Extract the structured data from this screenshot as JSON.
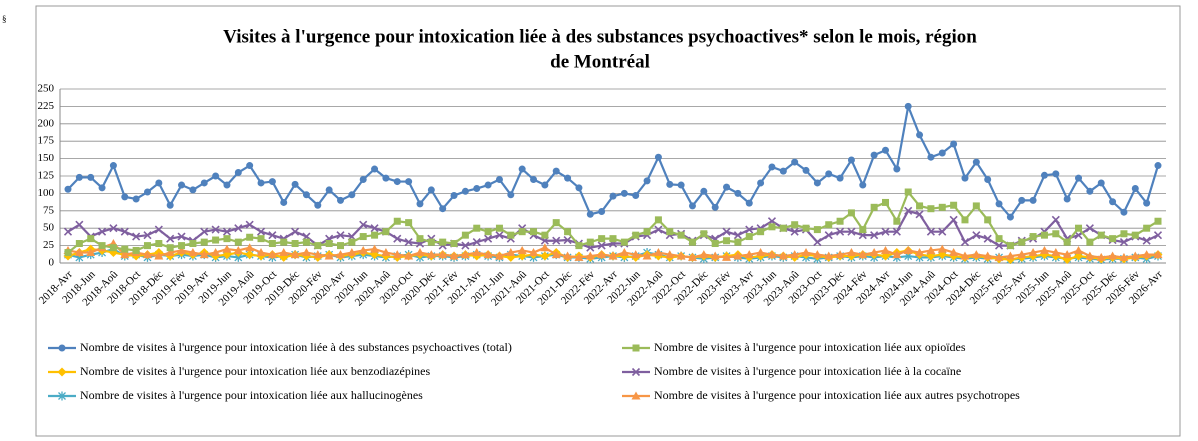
{
  "corner_mark": "§",
  "chart_data": {
    "type": "line",
    "title": [
      "Visites à l'urgence pour intoxication liée à des substances psychoactives* selon le mois, région",
      "de Montréal"
    ],
    "categories": [
      "2018-Avr",
      null,
      "2018-Jun",
      null,
      "2018-Aoû",
      null,
      "2018-Oct",
      null,
      "2018-Déc",
      null,
      "2019-Fév",
      null,
      "2019-Avr",
      null,
      "2019-Jun",
      null,
      "2019-Aoû",
      null,
      "2019-Oct",
      null,
      "2019-Déc",
      null,
      "2020-Fév",
      null,
      "2020-Avr",
      null,
      "2020-Jun",
      null,
      "2020-Aoû",
      null,
      "2020-Oct",
      null,
      "2020-Déc",
      null,
      "2021-Fév",
      null,
      "2021-Avr",
      null,
      "2021-Jun",
      null,
      "2021-Aoû",
      null,
      "2021-Oct",
      null,
      "2021-Déc",
      null,
      "2022-Fév",
      null,
      "2022-Avr",
      null,
      "2022-Jun",
      null,
      "2022-Aoû",
      null,
      "2022-Oct",
      null,
      "2022-Déc",
      null,
      "2023-Fév",
      null,
      "2023-Avr",
      null,
      "2023-Jun",
      null,
      "2023-Aoû",
      null,
      "2023-Oct",
      null,
      "2023-Déc",
      null,
      "2024-Fév",
      null,
      "2024-Avr",
      null,
      "2024-Jun",
      null,
      "2024-Aoû",
      null,
      "2024-Oct",
      null,
      "2024-Déc",
      null,
      "2025-Fév",
      null,
      "2025-Avr",
      null,
      "2025-Jun",
      null,
      "2025-Aoû",
      null,
      "2025-Oct",
      null,
      "2025-Déc",
      null,
      "2026-Fév",
      null,
      "2026-Avr"
    ],
    "series": [
      {
        "name": "Nombre de visites à l'urgence pour intoxication liée à des substances psychoactives (total)",
        "color": "#4f81bd",
        "marker": "circle",
        "values": [
          106,
          123,
          123,
          108,
          140,
          95,
          92,
          102,
          115,
          83,
          112,
          105,
          115,
          125,
          112,
          130,
          140,
          115,
          117,
          87,
          113,
          98,
          83,
          105,
          90,
          98,
          120,
          135,
          122,
          117,
          117,
          85,
          105,
          78,
          97,
          103,
          107,
          112,
          120,
          98,
          135,
          120,
          112,
          132,
          122,
          108,
          70,
          74,
          96,
          100,
          97,
          118,
          152,
          113,
          112,
          82,
          103,
          80,
          109,
          100,
          86,
          115,
          138,
          132,
          145,
          133,
          115,
          128,
          122,
          148,
          112,
          155,
          162,
          135,
          225,
          184,
          152,
          158,
          171,
          122,
          145,
          120,
          85,
          66,
          90,
          90,
          126,
          128,
          92,
          122,
          103,
          115,
          88,
          73,
          107,
          86,
          140
        ]
      },
      {
        "name": "Nombre de visites à l'urgence pour intoxication liée aux opioïdes",
        "color": "#9bbb59",
        "marker": "square",
        "values": [
          15,
          28,
          35,
          25,
          22,
          20,
          18,
          25,
          28,
          22,
          25,
          28,
          30,
          33,
          35,
          30,
          37,
          35,
          28,
          30,
          28,
          30,
          25,
          28,
          25,
          30,
          38,
          40,
          45,
          60,
          58,
          35,
          30,
          30,
          28,
          40,
          50,
          45,
          50,
          40,
          45,
          45,
          40,
          58,
          45,
          25,
          30,
          35,
          35,
          30,
          40,
          45,
          62,
          45,
          40,
          30,
          42,
          28,
          32,
          30,
          38,
          45,
          52,
          50,
          55,
          50,
          48,
          55,
          60,
          72,
          48,
          80,
          87,
          60,
          102,
          82,
          78,
          80,
          83,
          62,
          82,
          62,
          35,
          25,
          30,
          38,
          40,
          42,
          30,
          50,
          30,
          40,
          35,
          42,
          40,
          50,
          60
        ]
      },
      {
        "name": "Nombre de visites à l'urgence pour intoxication liée aux benzodiazépines",
        "color": "#ffc000",
        "marker": "diamond",
        "values": [
          10,
          15,
          20,
          18,
          15,
          12,
          10,
          12,
          15,
          10,
          15,
          12,
          15,
          10,
          12,
          15,
          12,
          10,
          12,
          8,
          12,
          10,
          8,
          12,
          10,
          12,
          15,
          12,
          10,
          8,
          10,
          12,
          10,
          12,
          10,
          12,
          10,
          12,
          10,
          8,
          10,
          12,
          10,
          15,
          8,
          10,
          8,
          12,
          10,
          10,
          8,
          12,
          10,
          8,
          10,
          8,
          10,
          8,
          10,
          12,
          8,
          10,
          12,
          10,
          8,
          12,
          10,
          8,
          10,
          10,
          12,
          12,
          10,
          15,
          18,
          12,
          10,
          12,
          10,
          8,
          10,
          8,
          6,
          5,
          8,
          10,
          12,
          10,
          5,
          10,
          8,
          6,
          8,
          6,
          8,
          10,
          12
        ]
      },
      {
        "name": "Nombre de visites à l'urgence pour intoxication liée à la cocaïne",
        "color": "#7f5f9f",
        "marker": "cross",
        "values": [
          45,
          55,
          38,
          45,
          50,
          45,
          38,
          40,
          48,
          35,
          38,
          32,
          45,
          48,
          45,
          50,
          55,
          45,
          40,
          35,
          45,
          38,
          25,
          35,
          40,
          38,
          55,
          50,
          45,
          35,
          30,
          28,
          35,
          25,
          28,
          25,
          30,
          35,
          40,
          35,
          50,
          40,
          32,
          32,
          33,
          28,
          22,
          25,
          28,
          28,
          38,
          40,
          48,
          40,
          42,
          32,
          40,
          35,
          45,
          40,
          48,
          50,
          60,
          50,
          45,
          48,
          30,
          40,
          45,
          45,
          40,
          40,
          45,
          45,
          75,
          70,
          45,
          45,
          62,
          30,
          40,
          35,
          25,
          25,
          32,
          35,
          45,
          62,
          35,
          40,
          50,
          40,
          33,
          30,
          38,
          32,
          40
        ]
      },
      {
        "name": "Nombre de visites à l'urgence pour intoxication liée aux hallucinogènes",
        "color": "#4bacc6",
        "marker": "star",
        "values": [
          12,
          8,
          12,
          15,
          20,
          10,
          12,
          8,
          12,
          10,
          12,
          10,
          12,
          8,
          10,
          8,
          12,
          10,
          8,
          10,
          12,
          8,
          10,
          12,
          8,
          10,
          12,
          10,
          8,
          10,
          12,
          8,
          10,
          10,
          8,
          10,
          12,
          10,
          8,
          12,
          10,
          8,
          10,
          12,
          8,
          8,
          6,
          8,
          10,
          8,
          10,
          15,
          12,
          8,
          10,
          8,
          6,
          8,
          10,
          8,
          6,
          8,
          10,
          8,
          10,
          8,
          6,
          8,
          10,
          8,
          10,
          8,
          10,
          8,
          10,
          8,
          8,
          10,
          8,
          6,
          8,
          6,
          8,
          5,
          6,
          8,
          10,
          8,
          6,
          8,
          6,
          5,
          6,
          6,
          8,
          6,
          10
        ]
      },
      {
        "name": "Nombre de visites à l'urgence pour intoxication liée aux autres psychotropes",
        "color": "#f79646",
        "marker": "triangle",
        "values": [
          18,
          15,
          15,
          22,
          28,
          12,
          15,
          12,
          10,
          15,
          18,
          15,
          12,
          15,
          20,
          18,
          22,
          15,
          12,
          15,
          12,
          15,
          12,
          10,
          12,
          15,
          18,
          20,
          15,
          12,
          10,
          15,
          12,
          12,
          10,
          12,
          15,
          12,
          10,
          15,
          18,
          15,
          22,
          12,
          10,
          8,
          10,
          12,
          10,
          15,
          12,
          10,
          15,
          12,
          10,
          8,
          12,
          10,
          8,
          10,
          12,
          15,
          12,
          10,
          12,
          15,
          12,
          10,
          12,
          15,
          12,
          15,
          18,
          12,
          18,
          15,
          18,
          20,
          15,
          10,
          12,
          10,
          8,
          10,
          12,
          15,
          18,
          15,
          12,
          18,
          10,
          8,
          10,
          8,
          10,
          12,
          12
        ]
      }
    ],
    "ylim": [
      0,
      250
    ],
    "yticks": [
      0,
      25,
      50,
      75,
      100,
      125,
      150,
      175,
      200,
      225,
      250
    ],
    "grid": true
  }
}
